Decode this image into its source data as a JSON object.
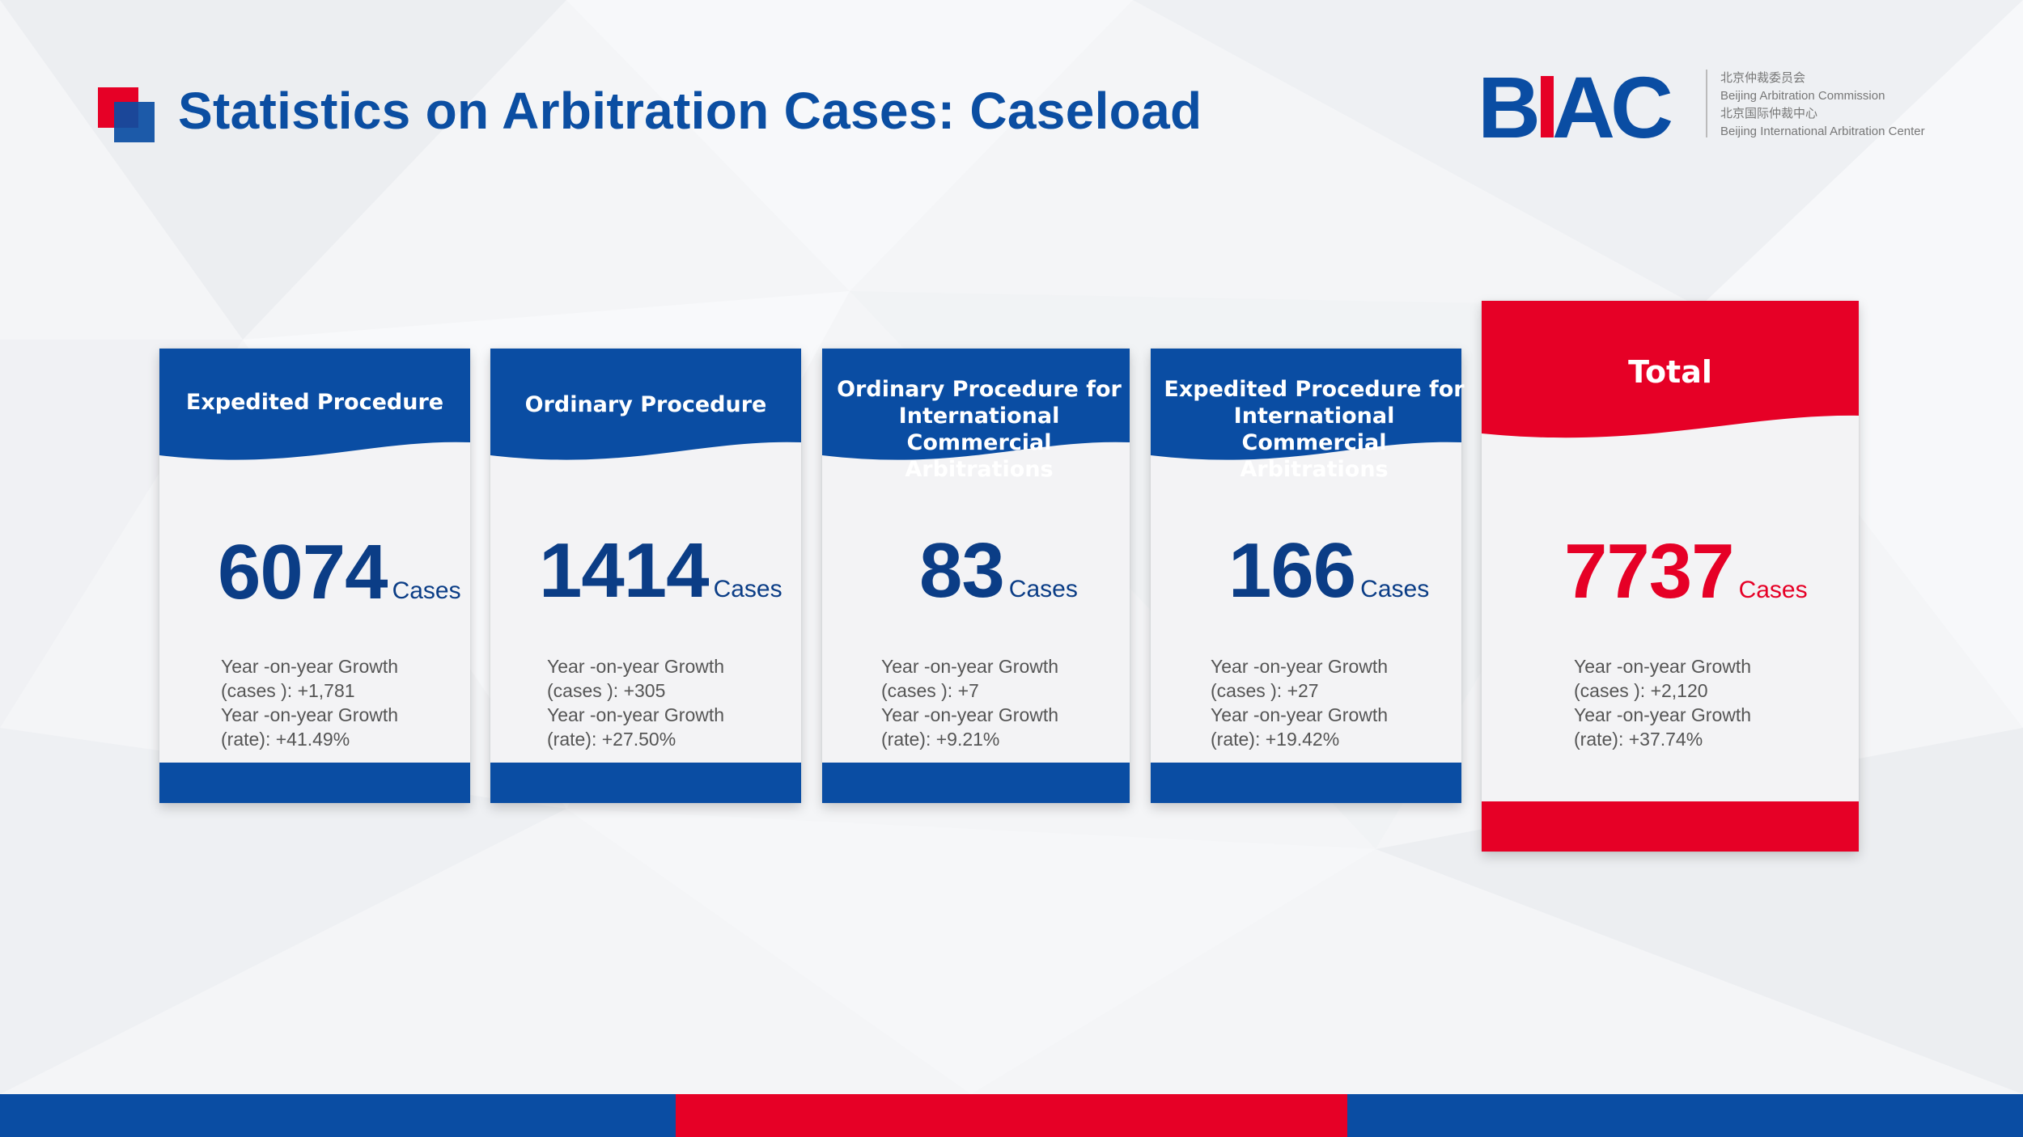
{
  "header": {
    "title": "Statistics on Arbitration Cases: Caseload"
  },
  "logo": {
    "mark": "BIAC",
    "line1_cn": "北京仲裁委员会",
    "line1_en": "Beijing Arbitration Commission",
    "line2_cn": "北京国际仲裁中心",
    "line2_en": "Beijing International Arbitration Center"
  },
  "colors": {
    "blue": "#0a4da3",
    "red": "#e60026",
    "text_gray": "#555555"
  },
  "cards": [
    {
      "label": "Expedited Procedure",
      "count": "6074",
      "unit": "Cases",
      "growth_cases_line1": "Year -on-year Growth",
      "growth_cases_line2": "(cases ): +1,781",
      "growth_rate_line1": "Year -on-year Growth",
      "growth_rate_line2": "(rate): +41.49%"
    },
    {
      "label": "Ordinary Procedure",
      "count": "1414",
      "unit": "Cases",
      "growth_cases_line1": "Year -on-year Growth",
      "growth_cases_line2": "(cases ): +305",
      "growth_rate_line1": "Year -on-year Growth",
      "growth_rate_line2": "(rate): +27.50%"
    },
    {
      "label": "Ordinary Procedure for\nInternational Commercial\nArbitrations",
      "count": "83",
      "unit": "Cases",
      "growth_cases_line1": "Year -on-year Growth",
      "growth_cases_line2": "(cases ): +7",
      "growth_rate_line1": "Year -on-year Growth",
      "growth_rate_line2": "(rate): +9.21%"
    },
    {
      "label": "Expedited Procedure for\nInternational Commercial\nArbitrations",
      "count": "166",
      "unit": "Cases",
      "growth_cases_line1": "Year -on-year Growth",
      "growth_cases_line2": "(cases ): +27",
      "growth_rate_line1": "Year -on-year Growth",
      "growth_rate_line2": "(rate): +19.42%"
    },
    {
      "label": "Total",
      "count": "7737",
      "unit": "Cases",
      "growth_cases_line1": "Year -on-year Growth",
      "growth_cases_line2": "(cases ): +2,120",
      "growth_rate_line1": "Year -on-year Growth",
      "growth_rate_line2": "(rate): +37.74%"
    }
  ]
}
